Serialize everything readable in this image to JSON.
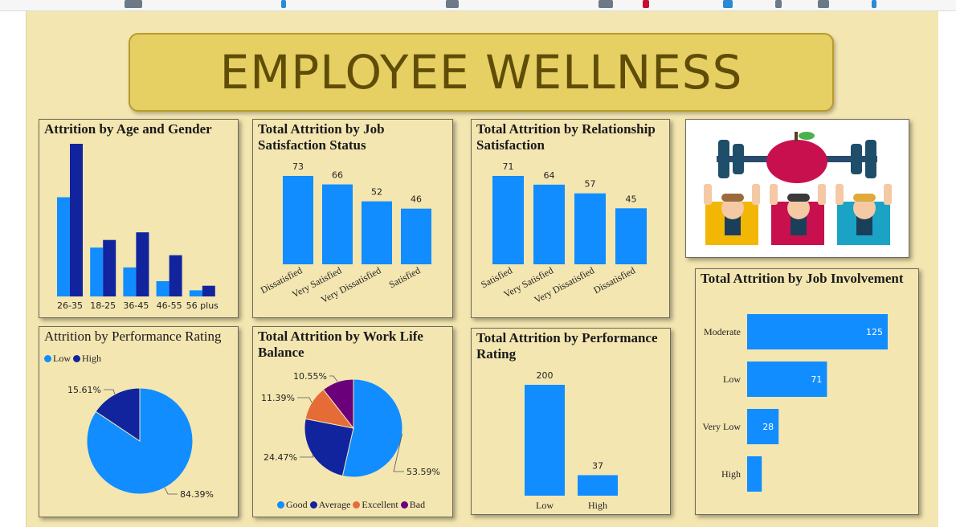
{
  "dashboard_title": "EMPLOYEE WELLNESS",
  "colors": {
    "light_blue": "#118DFF",
    "dark_blue": "#12239E",
    "orange": "#E66C37",
    "purple": "#6B007B",
    "canvas": "#F3E6B1",
    "banner": "#E6CF63"
  },
  "illustration": {
    "icon": "wellness-dumbbell-apple-people-icon"
  },
  "charts": {
    "age_gender": {
      "title": "Attrition by Age and Gender"
    },
    "job_satisfaction": {
      "title": "Total Attrition by Job Satisfaction Status"
    },
    "relationship": {
      "title": "Total Attrition by Relationship Satisfaction"
    },
    "perf_pie": {
      "title": "Attrition by Performance Rating"
    },
    "work_life": {
      "title": "Total Attrition by Work Life Balance"
    },
    "perf_bar": {
      "title": "Total Attrition by Performance Rating"
    },
    "job_involvement": {
      "title": "Total Attrition by Job Involvement"
    }
  },
  "chart_data": [
    {
      "type": "bar",
      "title": "Attrition by Age and Gender",
      "categories": [
        "26-35",
        "18-25",
        "36-45",
        "46-55",
        "56 plus"
      ],
      "series": [
        {
          "values": [
            65,
            32,
            19,
            10,
            4
          ],
          "color": "#118DFF"
        },
        {
          "values": [
            100,
            37,
            42,
            27,
            7
          ],
          "color": "#12239E"
        }
      ],
      "xlabel": "",
      "ylabel": ""
    },
    {
      "type": "bar",
      "title": "Total Attrition by Job Satisfaction Status",
      "categories": [
        "Dissatisfied",
        "Very Satisfied",
        "Very Dissatisfied",
        "Satisfied"
      ],
      "values": [
        73,
        66,
        52,
        46
      ],
      "data_labels": true
    },
    {
      "type": "bar",
      "title": "Total Attrition by Relationship Satisfaction",
      "categories": [
        "Satisfied",
        "Very Satisfied",
        "Very Dissatisfied",
        "Dissatisfied"
      ],
      "values": [
        71,
        64,
        57,
        45
      ],
      "data_labels": true
    },
    {
      "type": "pie",
      "title": "Attrition by Performance Rating",
      "labels": [
        "Low",
        "High"
      ],
      "values": [
        84.39,
        15.61
      ],
      "value_labels": [
        "84.39%",
        "15.61%"
      ],
      "colors": [
        "#118DFF",
        "#12239E"
      ],
      "legend": "top-left"
    },
    {
      "type": "pie",
      "title": "Total Attrition by Work Life Balance",
      "labels": [
        "Good",
        "Average",
        "Excellent",
        "Bad"
      ],
      "values": [
        53.59,
        24.47,
        11.39,
        10.55
      ],
      "value_labels": [
        "53.59%",
        "24.47%",
        "11.39%",
        "10.55%"
      ],
      "colors": [
        "#118DFF",
        "#12239E",
        "#E66C37",
        "#6B007B"
      ],
      "legend": "bottom"
    },
    {
      "type": "bar",
      "title": "Total Attrition by Performance Rating",
      "categories": [
        "Low",
        "High"
      ],
      "values": [
        200,
        37
      ],
      "data_labels": true
    },
    {
      "type": "bar",
      "orientation": "horizontal",
      "title": "Total Attrition by Job Involvement",
      "categories": [
        "Moderate",
        "Low",
        "Very Low",
        "High"
      ],
      "values": [
        125,
        71,
        28,
        13
      ],
      "value_labels": [
        "125",
        "71",
        "28",
        ""
      ]
    }
  ]
}
